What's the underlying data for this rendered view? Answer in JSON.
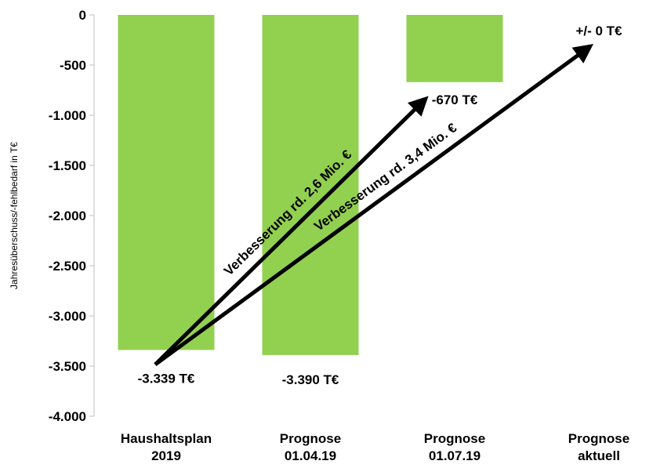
{
  "chart_data": {
    "type": "bar",
    "ylabel": "Jahresüberschuss/-fehlbedarf in T€",
    "ylim": [
      -4000,
      0
    ],
    "yticks": [
      0,
      -500,
      -1000,
      -1500,
      -2000,
      -2500,
      -3000,
      -3500,
      -4000
    ],
    "ytick_labels": [
      "0",
      "-500",
      "-1.000",
      "-1.500",
      "-2.000",
      "-2.500",
      "-3.000",
      "-3.500",
      "-4.000"
    ],
    "categories": [
      [
        "Haushaltsplan",
        "2019"
      ],
      [
        "Prognose",
        "01.04.19"
      ],
      [
        "Prognose",
        "01.07.19"
      ],
      [
        "Prognose",
        "aktuell"
      ]
    ],
    "values": [
      -3339,
      -3390,
      -670,
      0
    ],
    "data_labels": [
      "-3.339 T€",
      "-3.390 T€",
      "-670 T€",
      "+/-  0 T€"
    ],
    "bar_color": "#92d050",
    "grid": false,
    "annotations": [
      {
        "text": "Verbesserung rd. 2,6 Mio. €",
        "from_category": 0,
        "from_value": -3339,
        "to_category": 2,
        "to_value": -670
      },
      {
        "text": "Verbesserung rd. 3,4 Mio. €",
        "from_category": 0,
        "from_value": -3339,
        "to_category": 3,
        "to_value": 0
      }
    ]
  }
}
